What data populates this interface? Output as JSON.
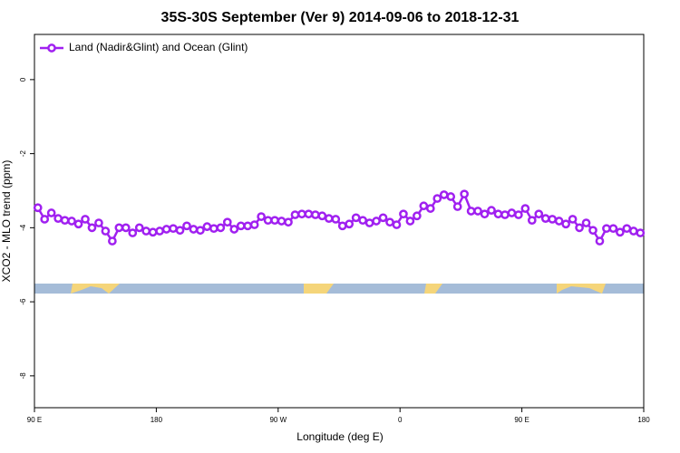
{
  "chart_data": {
    "type": "line",
    "title": "35S-30S September (Ver 9)   2014-09-06 to 2018-12-31",
    "x_label": "Longitude (deg E)",
    "y_label": "XCO2 - MLO trend (ppm)",
    "x": [
      92.5,
      97.5,
      102.5,
      107.5,
      112.5,
      117.5,
      122.5,
      127.5,
      132.5,
      137.5,
      142.5,
      147.5,
      152.5,
      157.5,
      162.5,
      167.5,
      172.5,
      177.5,
      182.5,
      187.5,
      192.5,
      197.5,
      202.5,
      207.5,
      212.5,
      217.5,
      222.5,
      227.5,
      232.5,
      237.5,
      242.5,
      247.5,
      252.5,
      257.5,
      262.5,
      267.5,
      272.5,
      277.5,
      282.5,
      287.5,
      292.5,
      297.5,
      302.5,
      307.5,
      312.5,
      317.5,
      322.5,
      327.5,
      332.5,
      337.5,
      342.5,
      347.5,
      352.5,
      357.5,
      362.5,
      367.5,
      372.5,
      377.5,
      382.5,
      387.5,
      392.5,
      397.5,
      402.5,
      407.5,
      412.5,
      417.5,
      422.5,
      427.5,
      432.5,
      437.5,
      442.5,
      447.5,
      452.5,
      457.5,
      462.5,
      467.5,
      472.5,
      477.5,
      482.5,
      487.5,
      492.5,
      497.5,
      502.5,
      507.5,
      512.5,
      517.5,
      522.5,
      527.5,
      532.5,
      537.5
    ],
    "series": [
      {
        "name": "Land (Nadir&Glint) and Ocean (Glint)",
        "color": "#a020f0",
        "values": [
          -3.46,
          -3.77,
          -3.6,
          -3.75,
          -3.8,
          -3.82,
          -3.9,
          -3.77,
          -4.0,
          -3.87,
          -4.09,
          -4.36,
          -4.0,
          -4.0,
          -4.14,
          -4.0,
          -4.09,
          -4.12,
          -4.09,
          -4.04,
          -4.02,
          -4.07,
          -3.95,
          -4.04,
          -4.07,
          -3.97,
          -4.02,
          -4.0,
          -3.85,
          -4.04,
          -3.95,
          -3.95,
          -3.92,
          -3.7,
          -3.8,
          -3.8,
          -3.82,
          -3.85,
          -3.65,
          -3.63,
          -3.63,
          -3.65,
          -3.68,
          -3.75,
          -3.77,
          -3.95,
          -3.9,
          -3.73,
          -3.8,
          -3.87,
          -3.82,
          -3.73,
          -3.85,
          -3.92,
          -3.63,
          -3.82,
          -3.68,
          -3.41,
          -3.48,
          -3.21,
          -3.11,
          -3.16,
          -3.43,
          -3.09,
          -3.55,
          -3.55,
          -3.63,
          -3.53,
          -3.63,
          -3.65,
          -3.6,
          -3.65,
          -3.48,
          -3.8,
          -3.63,
          -3.75,
          -3.77,
          -3.82,
          -3.9,
          -3.77,
          -4.0,
          -3.87,
          -4.07,
          -4.36,
          -4.02,
          -4.02,
          -4.12,
          -4.02,
          -4.09,
          -4.14
        ]
      }
    ],
    "xlim": [
      90,
      540
    ],
    "xticks": [
      {
        "value": 90,
        "label": "90 E"
      },
      180,
      {
        "value": 270,
        "label": "90 W"
      },
      {
        "value": 360,
        "label": "0"
      },
      {
        "value": 450,
        "label": "90 E"
      },
      {
        "value": 540,
        "label": "180"
      }
    ],
    "ylim": [
      -8.86,
      1.22
    ],
    "yticks": [
      0,
      -2,
      -4,
      -6,
      -8
    ],
    "legend": "top-left"
  }
}
